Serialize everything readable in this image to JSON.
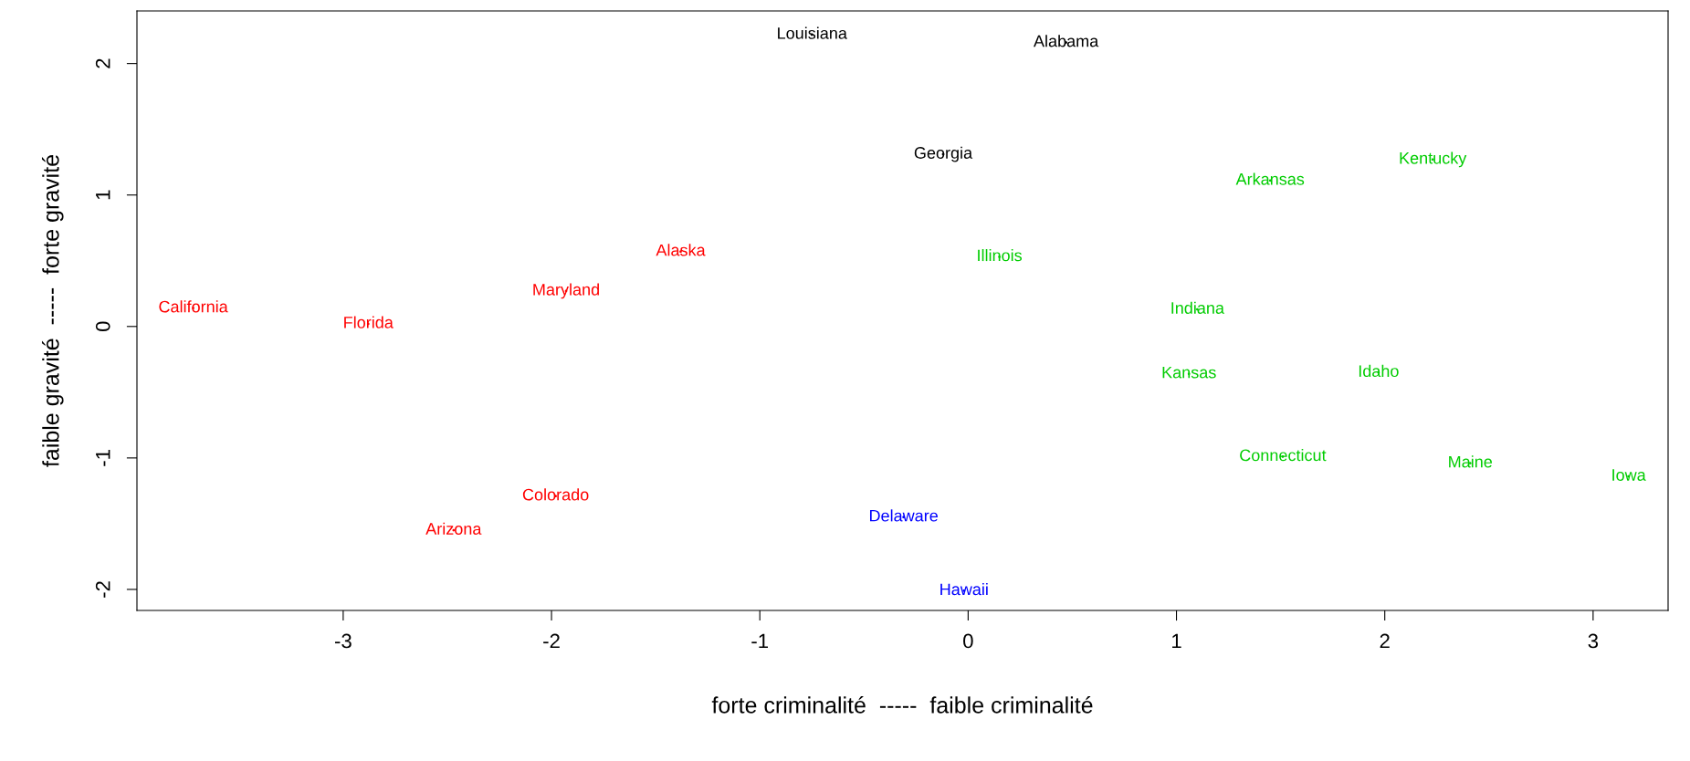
{
  "chart_data": {
    "type": "scatter",
    "xlabel": "forte criminalité  -----  faible criminalité",
    "ylabel": "faible gravité  -----  forte gravité",
    "xlim": [
      -3.99,
      3.36
    ],
    "ylim": [
      -2.16,
      2.4
    ],
    "xticks": [
      -3,
      -2,
      -1,
      0,
      1,
      2,
      3
    ],
    "yticks": [
      -2,
      -1,
      0,
      1,
      2
    ],
    "grid": false,
    "legend": false,
    "marker": "none",
    "series": [
      {
        "color": "#000000",
        "x": [
          -0.75,
          0.47,
          -0.12
        ],
        "values": [
          2.22,
          2.16,
          1.31
        ],
        "value_labels": [
          "Louisiana",
          "Alabama",
          "Georgia"
        ]
      },
      {
        "color": "#ff0000",
        "x": [
          -3.72,
          -2.88,
          -1.93,
          -1.38,
          -1.98,
          -2.47
        ],
        "values": [
          0.14,
          0.02,
          0.27,
          0.57,
          -1.29,
          -1.55
        ],
        "value_labels": [
          "California",
          "Florida",
          "Maryland",
          "Alaska",
          "Colorado",
          "Arizona"
        ]
      },
      {
        "color": "#0000ff",
        "x": [
          -0.31,
          -0.02
        ],
        "values": [
          -1.45,
          -2.01
        ],
        "value_labels": [
          "Delaware",
          "Hawaii"
        ]
      },
      {
        "color": "#00cc00",
        "x": [
          0.15,
          1.45,
          2.23,
          1.1,
          1.06,
          1.97,
          1.51,
          2.41,
          3.17
        ],
        "values": [
          0.53,
          1.11,
          1.27,
          0.13,
          -0.36,
          -0.35,
          -0.99,
          -1.04,
          -1.14
        ],
        "value_labels": [
          "Illinois",
          "Arkansas",
          "Kentucky",
          "Indiana",
          "Kansas",
          "Idaho",
          "Connecticut",
          "Maine",
          "Iowa"
        ]
      }
    ]
  }
}
